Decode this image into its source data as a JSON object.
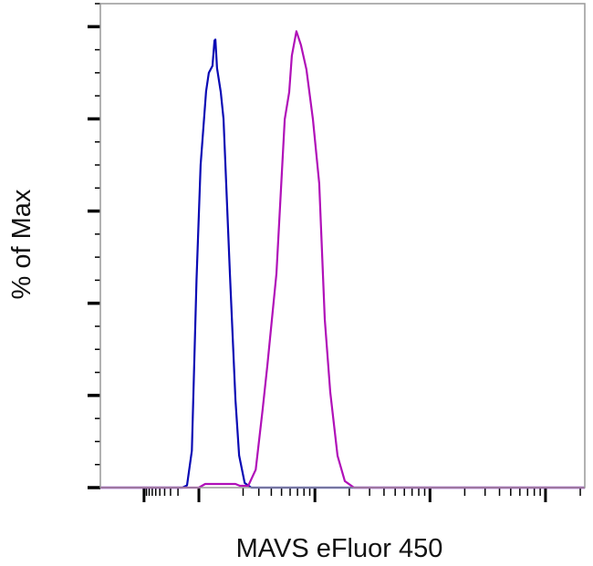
{
  "chart_data": {
    "type": "line",
    "title": "",
    "xlabel": "MAVS eFluor 450",
    "ylabel": "% of Max",
    "x_scale": "biexponential",
    "xlim": [
      -6400,
      218000
    ],
    "ylim": [
      0,
      105
    ],
    "grid": false,
    "legend": "none",
    "x_major_ticks": [
      -1000,
      0,
      1000,
      10000,
      100000
    ],
    "y_major_ticks": [
      0,
      20,
      40,
      60,
      80,
      100
    ],
    "series": [
      {
        "color": "#0a0ab4",
        "points": [
          [
            -6360,
            0
          ],
          [
            -150,
            0
          ],
          [
            -104,
            0.5
          ],
          [
            -60,
            8
          ],
          [
            -20,
            45
          ],
          [
            7,
            70
          ],
          [
            29,
            86
          ],
          [
            40,
            90
          ],
          [
            55,
            91.5
          ],
          [
            63,
            97
          ],
          [
            67,
            97.2
          ],
          [
            74,
            91
          ],
          [
            90,
            85.8
          ],
          [
            102,
            80
          ],
          [
            132,
            46
          ],
          [
            159,
            19
          ],
          [
            178,
            7
          ],
          [
            209,
            1
          ],
          [
            249,
            0
          ],
          [
            218700,
            0
          ]
        ]
      },
      {
        "color": "#b010b8",
        "points": [
          [
            -6360,
            0
          ],
          [
            0,
            0
          ],
          [
            25,
            0.8
          ],
          [
            159,
            0.8
          ],
          [
            182,
            0.4
          ],
          [
            230,
            0.4
          ],
          [
            278,
            3.9
          ],
          [
            328,
            16.8
          ],
          [
            366,
            26.6
          ],
          [
            448,
            46.4
          ],
          [
            535,
            79.9
          ],
          [
            588,
            85.8
          ],
          [
            622,
            93.7
          ],
          [
            684,
            99
          ],
          [
            752,
            96
          ],
          [
            842,
            90.7
          ],
          [
            960,
            79.9
          ],
          [
            1092,
            66
          ],
          [
            1222,
            36.5
          ],
          [
            1364,
            20.7
          ],
          [
            1580,
            6.9
          ],
          [
            1828,
            1.4
          ],
          [
            2196,
            0
          ],
          [
            218700,
            0
          ]
        ]
      }
    ]
  }
}
